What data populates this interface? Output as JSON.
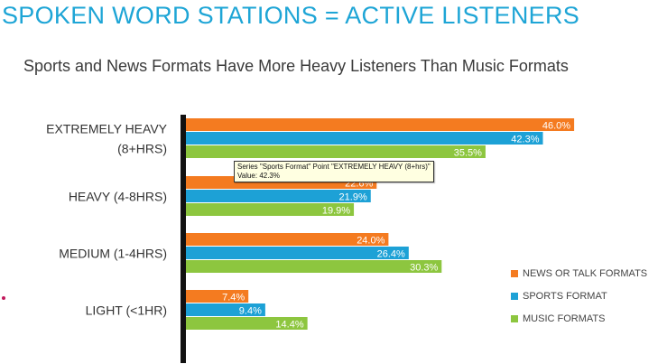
{
  "header": {
    "title": "SPOKEN WORD STATIONS = ACTIVE LISTENERS",
    "subtitle": "Sports and News Formats Have More Heavy Listeners Than Music Formats"
  },
  "tooltip": {
    "line1": "Series \"Sports Format\" Point \"EXTREMELY HEAVY (8+hrs)\"",
    "line2": "Value: 42.3%"
  },
  "chart_data": {
    "type": "bar",
    "orientation": "horizontal",
    "categories": [
      [
        "EXTREMELY HEAVY",
        "(8+HRS)"
      ],
      [
        "HEAVY (4-8HRS)"
      ],
      [
        "MEDIUM (1-4HRS)"
      ],
      [
        "LIGHT (<1HR)"
      ]
    ],
    "series": [
      {
        "name": "NEWS OR TALK FORMATS",
        "color": "#f47b20",
        "values": [
          46.0,
          22.6,
          24.0,
          7.4
        ]
      },
      {
        "name": "SPORTS FORMAT",
        "color": "#1da1d6",
        "values": [
          42.3,
          21.9,
          26.4,
          9.4
        ]
      },
      {
        "name": "MUSIC FORMATS",
        "color": "#8dc63f",
        "values": [
          35.5,
          19.9,
          30.3,
          14.4
        ]
      }
    ],
    "value_suffix": "%",
    "legend_position": "bottom-right",
    "grid": false
  }
}
